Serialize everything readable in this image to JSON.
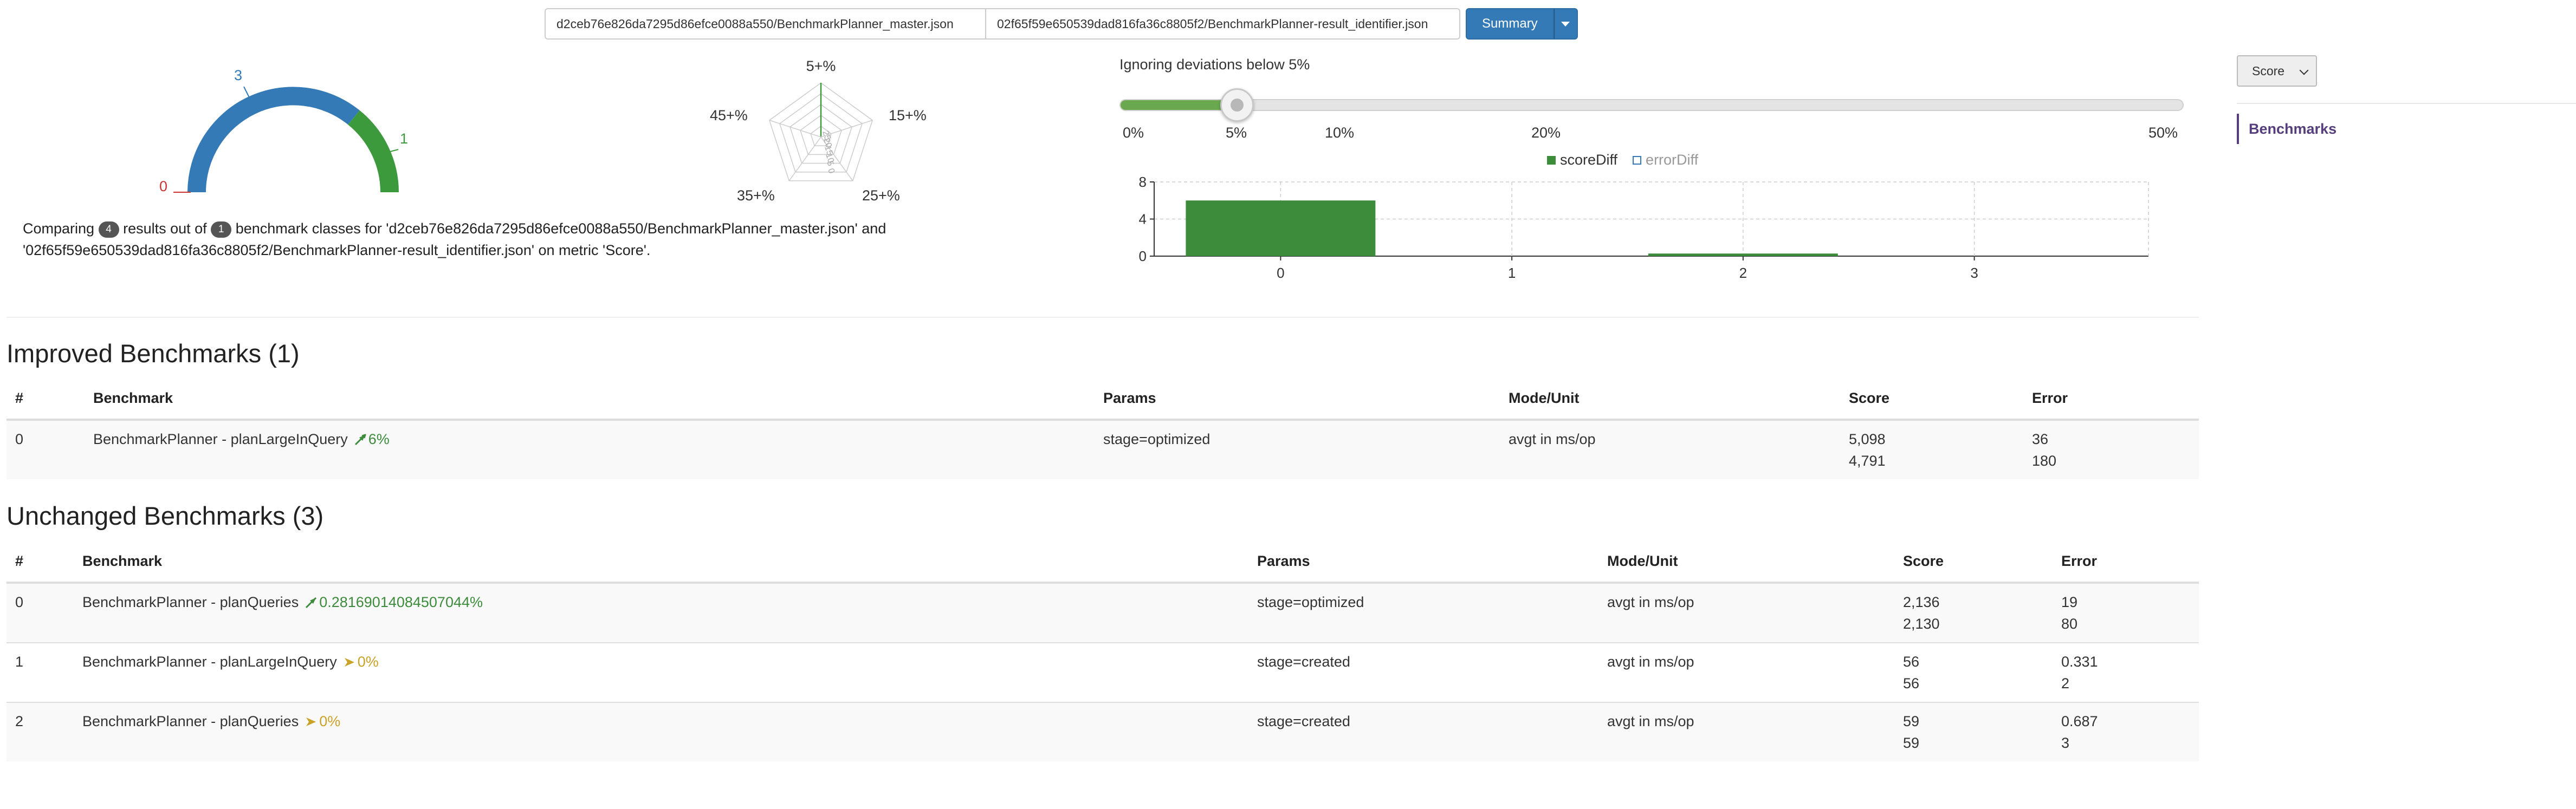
{
  "files": {
    "master": "d2ceb76e826da7295d86efce0088a550/BenchmarkPlanner_master.json",
    "result": "02f65f59e650539dad816fa36c8805f2/BenchmarkPlanner-result_identifier.json"
  },
  "summary_button": "Summary",
  "gauge": {
    "left_label": "0",
    "top_label": "3",
    "right_label": "1",
    "unchanged": 3,
    "improved": 1,
    "regressed": 0,
    "colors": {
      "unchanged": "#337ab7",
      "improved": "#3c9a3c",
      "regressed": "#cc3333"
    }
  },
  "radar": {
    "labels": [
      "5+%",
      "15+%",
      "25+%",
      "35+%",
      "45+%"
    ],
    "rings": [
      "25",
      "20",
      "15",
      "10",
      "5",
      "0"
    ]
  },
  "comparison": {
    "prefix": "Comparing",
    "results_count": "4",
    "middle": "results out of",
    "classes_count": "1",
    "text": "benchmark classes for 'd2ceb76e826da7295d86efce0088a550/BenchmarkPlanner_master.json' and '02f65f59e650539dad816fa36c8805f2/BenchmarkPlanner-result_identifier.json' on metric 'Score'."
  },
  "deviation": {
    "label": "Ignoring deviations below 5%",
    "value_percent": 5,
    "ticks": [
      "0%",
      "5%",
      "10%",
      "20%",
      "50%"
    ]
  },
  "chart_data": {
    "type": "bar",
    "categories": [
      "0",
      "1",
      "2",
      "3"
    ],
    "series": [
      {
        "name": "scoreDiff",
        "values": [
          6,
          0,
          0.28,
          0
        ]
      },
      {
        "name": "errorDiff",
        "values": [
          0,
          0,
          0,
          0
        ]
      }
    ],
    "yticks": [
      "0",
      "4",
      "8"
    ],
    "ylim": [
      0,
      8
    ],
    "legend": "top-center",
    "grid": true
  },
  "sidebar": {
    "metric_select": "Score",
    "nav": "Benchmarks"
  },
  "improved": {
    "title": "Improved Benchmarks (1)",
    "columns": [
      "#",
      "Benchmark",
      "Params",
      "Mode/Unit",
      "Score",
      "Error"
    ],
    "rows": [
      {
        "idx": "0",
        "name": "BenchmarkPlanner - planLargeInQuery",
        "diff": "6%",
        "trend": "up",
        "params": "stage=optimized",
        "mode": "avgt in ms/op",
        "score1": "5,098",
        "score2": "4,791",
        "error1": "36",
        "error2": "180"
      }
    ]
  },
  "unchanged": {
    "title": "Unchanged Benchmarks (3)",
    "columns": [
      "#",
      "Benchmark",
      "Params",
      "Mode/Unit",
      "Score",
      "Error"
    ],
    "rows": [
      {
        "idx": "0",
        "name": "BenchmarkPlanner - planQueries",
        "diff": "0.28169014084507044%",
        "trend": "up",
        "params": "stage=optimized",
        "mode": "avgt in ms/op",
        "score1": "2,136",
        "score2": "2,130",
        "error1": "19",
        "error2": "80"
      },
      {
        "idx": "1",
        "name": "BenchmarkPlanner - planLargeInQuery",
        "diff": "0%",
        "trend": "flat",
        "params": "stage=created",
        "mode": "avgt in ms/op",
        "score1": "56",
        "score2": "56",
        "error1": "0.331",
        "error2": "2"
      },
      {
        "idx": "2",
        "name": "BenchmarkPlanner - planQueries",
        "diff": "0%",
        "trend": "flat",
        "params": "stage=created",
        "mode": "avgt in ms/op",
        "score1": "59",
        "score2": "59",
        "error1": "0.687",
        "error2": "3"
      }
    ]
  }
}
